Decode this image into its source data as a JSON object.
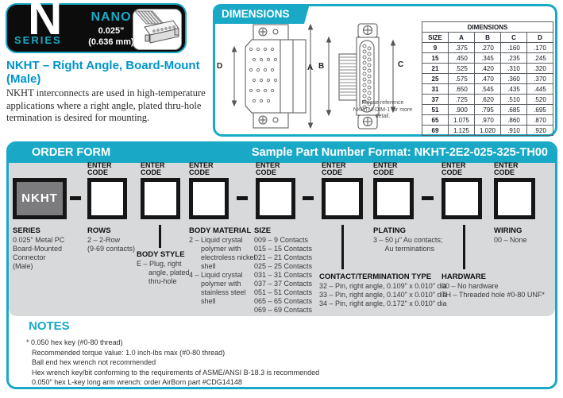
{
  "badge": {
    "letter": "N",
    "series": "SERIES",
    "family": "NANO",
    "pitch_in": "0.025\"",
    "pitch_mm": "(0.636 mm)"
  },
  "intro": {
    "title_line1": "NKHT – Right Angle, Board-Mount",
    "title_line2": "(Male)",
    "description": "NKHT interconnects are used in high-temperature applications where a right angle, plated thru-hole termination is desired for mounting."
  },
  "dimensions": {
    "header": "DIMENSIONS",
    "drawing_labels": {
      "a": "A",
      "b": "B",
      "c": "C",
      "d": "D"
    },
    "reference_note": "Please reference NKHTM-DIM-1 for more detail.",
    "table": {
      "title": "DIMENSIONS",
      "columns": [
        "SIZE",
        "A",
        "B",
        "C",
        "D"
      ],
      "rows": [
        [
          "9",
          ".375",
          ".270",
          ".160",
          ".170"
        ],
        [
          "15",
          ".450",
          ".345",
          ".235",
          ".245"
        ],
        [
          "21",
          ".525",
          ".420",
          ".310",
          ".320"
        ],
        [
          "25",
          ".575",
          ".470",
          ".360",
          ".370"
        ],
        [
          "31",
          ".650",
          ".545",
          ".435",
          ".445"
        ],
        [
          "37",
          ".725",
          ".620",
          ".510",
          ".520"
        ],
        [
          "51",
          ".900",
          ".795",
          ".685",
          ".695"
        ],
        [
          "65",
          "1.075",
          ".970",
          ".860",
          ".870"
        ],
        [
          "69",
          "1.125",
          "1.020",
          ".910",
          ".920"
        ]
      ]
    }
  },
  "order_form": {
    "header": "ORDER FORM",
    "sample": "Sample Part Number Format: NKHT-2E2-025-325-TH00",
    "enter_code": "ENTER\nCODE",
    "series_code": "NKHT",
    "fields": {
      "series": {
        "heading": "SERIES",
        "lines": [
          "0.025\" Metal PC",
          "Board-Mounted",
          "Connector",
          "(Male)"
        ]
      },
      "rows": {
        "heading": "ROWS",
        "lines": [
          "2 – 2-Row",
          "(9-69 contacts)"
        ]
      },
      "body_style": {
        "heading": "BODY STYLE",
        "lines": [
          "E – Plug, right",
          "      angle, plated",
          "      thru-hole"
        ]
      },
      "body_material": {
        "heading": "BODY MATERIAL",
        "lines": [
          "2 – Liquid crystal",
          "      polymer with",
          "      electroless nickel",
          "      shell",
          "4 – Liquid crystal",
          "      polymer with",
          "      stainless steel",
          "      shell"
        ]
      },
      "size": {
        "heading": "SIZE",
        "lines": [
          "009 – 9 Contacts",
          "015 – 15 Contacts",
          "021 – 21 Contacts",
          "025 – 25 Contacts",
          "031 – 31 Contacts",
          "037 – 37 Contacts",
          "051 – 51 Contacts",
          "065 – 65 Contacts",
          "069 – 69 Contacts"
        ]
      },
      "contact": {
        "heading": "CONTACT/TERMINATION TYPE",
        "lines": [
          "32 – Pin, right angle, 0.109\" x 0.010\" dia",
          "33 – Pin, right angle, 0.140\" x 0.010\" dia",
          "34 – Pin, right angle, 0.172\" x 0.010\" dia"
        ]
      },
      "plating": {
        "heading": "PLATING",
        "lines": [
          "3 – 50 µ\" Au contacts;",
          "      Au terminations"
        ]
      },
      "hardware": {
        "heading": "HARDWARE",
        "lines": [
          "00 – No hardware",
          "TH – Threaded hole #0-80 UNF*"
        ]
      },
      "wiring": {
        "heading": "WIRING",
        "lines": [
          "00 – None"
        ]
      }
    }
  },
  "notes": {
    "title": "NOTES",
    "lines": [
      "* 0.050 hex key (#0-80 thread)",
      "Recommended torque value: 1.0 inch-lbs max (#0-80 thread)",
      "Ball end hex wrench not recommended",
      "Hex wrench key/bit conforming to the requirements of ASME/ANSI B-18.3 is recommended",
      "0.050\" hex L-key long arm wrench: order AirBorn part #CDG14148"
    ]
  },
  "colors": {
    "teal": "#19a9c6",
    "heading_blue": "#0094cb",
    "panel_gray": "#d8d9db"
  }
}
